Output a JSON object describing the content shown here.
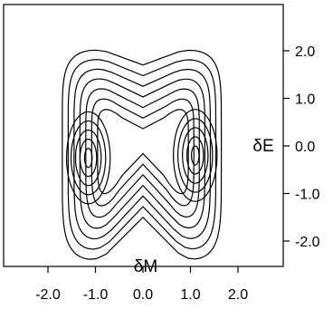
{
  "chart_data": {
    "type": "contour",
    "xlabel": "δM",
    "ylabel": "δE",
    "xlim": [
      -3.0,
      3.0
    ],
    "ylim": [
      -3.0,
      3.0
    ],
    "x_ticks": [
      "-2.0",
      "-1.0",
      "0.0",
      "1.0",
      "2.0"
    ],
    "y_ticks": [
      "2.0",
      "1.0",
      "0.0",
      "-1.0",
      "-2.0"
    ],
    "x_tick_values": [
      -2.0,
      -1.0,
      0.0,
      1.0,
      2.0
    ],
    "y_tick_values": [
      2.0,
      1.0,
      0.0,
      -1.0,
      -2.0
    ],
    "y_axis_side": "right",
    "grid": false,
    "peaks": [
      {
        "x": -1.15,
        "y": -0.25
      },
      {
        "x": 1.1,
        "y": -0.2
      }
    ],
    "contour_levels": [
      1,
      2,
      3,
      4,
      5,
      6,
      7,
      8,
      9,
      10,
      11,
      12
    ],
    "line_color": "#000000"
  }
}
